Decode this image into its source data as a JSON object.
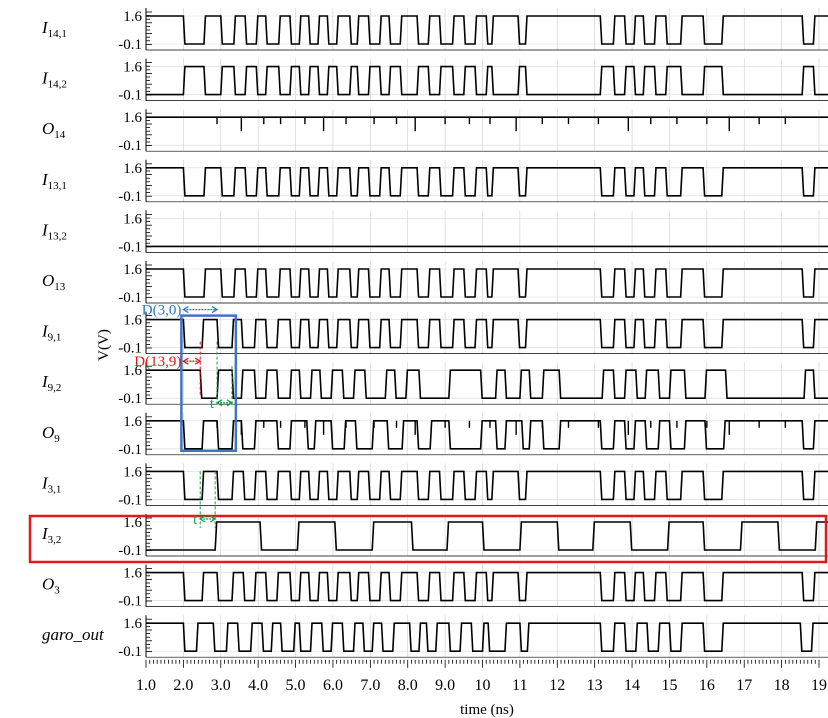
{
  "chart_data": {
    "type": "line",
    "xlabel": "time (ns)",
    "ylabel": "V(V)",
    "xlim": [
      1.0,
      19.0
    ],
    "x_ticks": [
      "1.0",
      "2.0",
      "3.0",
      "4.0",
      "5.0",
      "6.0",
      "7.0",
      "8.0",
      "9.0",
      "10",
      "11",
      "12",
      "13",
      "14",
      "15",
      "16",
      "17",
      "18",
      "19"
    ],
    "y_level_labels": [
      "1.6",
      "-0.1"
    ],
    "series": [
      {
        "name": "I14,1",
        "base": "I",
        "sub": "14,1",
        "toggles": [
          2.0,
          2.55,
          3.0,
          3.35,
          3.65,
          3.95,
          4.2,
          4.55,
          4.85,
          5.1,
          5.35,
          5.6,
          5.85,
          6.1,
          6.45,
          6.65,
          6.95,
          7.25,
          7.5,
          7.8,
          8.25,
          8.55,
          8.85,
          9.2,
          9.5,
          9.8,
          10.1,
          10.25,
          10.95,
          11.15,
          13.15,
          13.5,
          13.8,
          14.05,
          14.3,
          14.6,
          14.9,
          15.3,
          15.9,
          16.4,
          18.55,
          18.85
        ],
        "start": "high",
        "glitch": false
      },
      {
        "name": "I14,2",
        "base": "I",
        "sub": "14,2",
        "toggles": [
          2.0,
          2.55,
          3.0,
          3.35,
          3.65,
          3.95,
          4.2,
          4.55,
          4.85,
          5.1,
          5.35,
          5.6,
          5.85,
          6.1,
          6.45,
          6.65,
          6.95,
          7.25,
          7.5,
          7.8,
          8.25,
          8.55,
          8.85,
          9.2,
          9.5,
          9.8,
          10.1,
          10.25,
          10.95,
          11.15,
          13.15,
          13.5,
          13.8,
          14.05,
          14.3,
          14.6,
          14.9,
          15.3,
          15.9,
          16.4,
          18.55,
          18.85
        ],
        "start": "low",
        "glitch": false
      },
      {
        "name": "O14",
        "base": "O",
        "sub": "14",
        "toggles": [],
        "start": "high",
        "glitch": true
      },
      {
        "name": "I13,1",
        "base": "I",
        "sub": "13,1",
        "toggles": [
          2.0,
          2.55,
          3.0,
          3.35,
          3.65,
          3.95,
          4.2,
          4.55,
          4.85,
          5.1,
          5.35,
          5.6,
          5.85,
          6.1,
          6.45,
          6.65,
          6.95,
          7.25,
          7.5,
          7.8,
          8.25,
          8.55,
          8.85,
          9.2,
          9.5,
          9.8,
          10.1,
          10.25,
          10.95,
          11.15,
          13.15,
          13.5,
          13.8,
          14.05,
          14.3,
          14.6,
          14.9,
          15.3,
          15.9,
          16.4,
          18.55,
          18.85
        ],
        "start": "high",
        "glitch": false
      },
      {
        "name": "I13,2",
        "base": "I",
        "sub": "13,2",
        "toggles": [],
        "start": "low",
        "glitch": false
      },
      {
        "name": "O13",
        "base": "O",
        "sub": "13",
        "toggles": [
          2.0,
          2.55,
          3.0,
          3.35,
          3.65,
          3.95,
          4.2,
          4.55,
          4.85,
          5.1,
          5.35,
          5.6,
          5.85,
          6.1,
          6.45,
          6.65,
          6.95,
          7.25,
          7.5,
          7.8,
          8.25,
          8.55,
          8.85,
          9.2,
          9.5,
          9.8,
          10.1,
          10.25,
          10.95,
          11.15,
          13.15,
          13.5,
          13.8,
          14.05,
          14.3,
          14.6,
          14.9,
          15.3,
          15.9,
          16.4,
          18.55,
          18.85
        ],
        "start": "high",
        "glitch": false
      },
      {
        "name": "I9,1",
        "base": "I",
        "sub": "9,1",
        "toggles": [
          2.0,
          2.5,
          2.9,
          3.3,
          3.55,
          3.9,
          4.2,
          4.5,
          4.85,
          5.1,
          5.35,
          5.6,
          5.85,
          6.1,
          6.45,
          6.65,
          6.95,
          7.25,
          7.5,
          7.8,
          8.25,
          8.55,
          8.85,
          9.2,
          9.5,
          9.8,
          10.1,
          10.25,
          10.95,
          11.15,
          13.15,
          13.5,
          13.8,
          14.05,
          14.3,
          14.6,
          14.9,
          15.3,
          15.9,
          16.4,
          18.55,
          18.85
        ],
        "start": "high",
        "glitch": false
      },
      {
        "name": "I9,2",
        "base": "I",
        "sub": "9,2",
        "toggles": [
          2.45,
          2.9,
          3.3,
          3.55,
          3.9,
          4.2,
          4.5,
          4.85,
          5.1,
          5.4,
          5.65,
          5.95,
          6.25,
          6.55,
          6.85,
          7.4,
          7.65,
          7.95,
          8.3,
          9.1,
          9.95,
          10.35,
          10.6,
          11.0,
          11.25,
          11.6,
          12.05,
          13.2,
          13.5,
          13.8,
          14.1,
          14.35,
          14.7,
          15.0,
          15.4,
          15.95,
          16.5,
          18.6,
          18.85
        ],
        "start": "high",
        "glitch": false
      },
      {
        "name": "O9",
        "base": "O",
        "sub": "9",
        "toggles": [
          2.0,
          2.5,
          2.9,
          3.3,
          3.55,
          3.9,
          4.5,
          4.85,
          5.3,
          5.5,
          5.95,
          6.3,
          6.6,
          7.05,
          7.45,
          7.85,
          8.25,
          8.6,
          9.1,
          9.95,
          10.35,
          10.6,
          11.05,
          11.25,
          11.6,
          12.05,
          13.15,
          13.5,
          13.8,
          14.05,
          14.35,
          14.7,
          15.0,
          15.4,
          15.95,
          16.45,
          18.55,
          18.85
        ],
        "start": "high",
        "glitch": true
      },
      {
        "name": "I3,1",
        "base": "I",
        "sub": "3,1",
        "toggles": [
          2.0,
          2.5,
          2.9,
          3.3,
          3.6,
          3.9,
          4.2,
          4.5,
          4.85,
          5.1,
          5.35,
          5.6,
          5.85,
          6.1,
          6.45,
          6.65,
          6.95,
          7.25,
          7.5,
          7.8,
          8.25,
          8.55,
          8.85,
          9.2,
          9.5,
          9.8,
          10.1,
          10.25,
          10.95,
          11.15,
          13.15,
          13.5,
          13.8,
          14.05,
          14.3,
          14.6,
          14.9,
          15.3,
          15.9,
          16.4,
          18.55,
          18.85
        ],
        "start": "high",
        "glitch": false
      },
      {
        "name": "I3,2",
        "base": "I",
        "sub": "3,2",
        "toggles": [
          2.85,
          4.05,
          5.05,
          6.05,
          7.05,
          8.1,
          9.05,
          10.0,
          11.0,
          12.0,
          12.95,
          13.95,
          14.95,
          15.9,
          16.9,
          17.9,
          18.9
        ],
        "start": "low",
        "glitch": false
      },
      {
        "name": "O3",
        "base": "O",
        "sub": "3",
        "toggles": [
          2.0,
          2.5,
          2.9,
          3.3,
          3.6,
          3.9,
          4.2,
          4.5,
          4.85,
          5.1,
          5.35,
          5.6,
          5.85,
          6.1,
          6.45,
          6.65,
          6.95,
          7.25,
          7.5,
          7.8,
          8.25,
          8.55,
          8.85,
          9.2,
          9.5,
          9.8,
          10.1,
          10.25,
          10.95,
          11.15,
          13.15,
          13.5,
          13.8,
          14.05,
          14.3,
          14.6,
          14.9,
          15.3,
          15.9,
          16.4,
          18.55,
          18.85
        ],
        "start": "high",
        "glitch": false
      },
      {
        "name": "garo_out",
        "base": "garo_out",
        "sub": "",
        "toggles": [
          2.0,
          2.35,
          2.8,
          3.15,
          3.45,
          3.8,
          4.1,
          4.35,
          4.6,
          4.95,
          5.1,
          5.4,
          5.7,
          5.95,
          6.25,
          6.55,
          6.8,
          7.05,
          7.3,
          7.6,
          8.05,
          8.3,
          8.5,
          8.75,
          9.1,
          9.4,
          9.7,
          10.0,
          10.15,
          10.6,
          11.0,
          11.2,
          13.15,
          13.5,
          13.8,
          14.1,
          14.4,
          14.7,
          15.0,
          15.3,
          15.9,
          16.4,
          18.5,
          18.8
        ],
        "start": "high",
        "glitch": false
      }
    ],
    "annotations": [
      {
        "text": "D(3,0)",
        "color": "#2f75c6",
        "x_from": 2.0,
        "x_to": 2.9
      },
      {
        "text": "D(13,9)",
        "color": "#e0191b",
        "x_from": 2.0,
        "x_to": 2.45
      },
      {
        "text": "t",
        "color": "#1aa34a",
        "x_from": 2.9,
        "x_to": 3.3
      },
      {
        "text": "t",
        "color": "#1aa34a",
        "x_from": 2.45,
        "x_to": 2.85
      }
    ],
    "highlight_box_color": "#4472c4",
    "highlight_row_box_color": "#e0191b",
    "grid": true
  }
}
